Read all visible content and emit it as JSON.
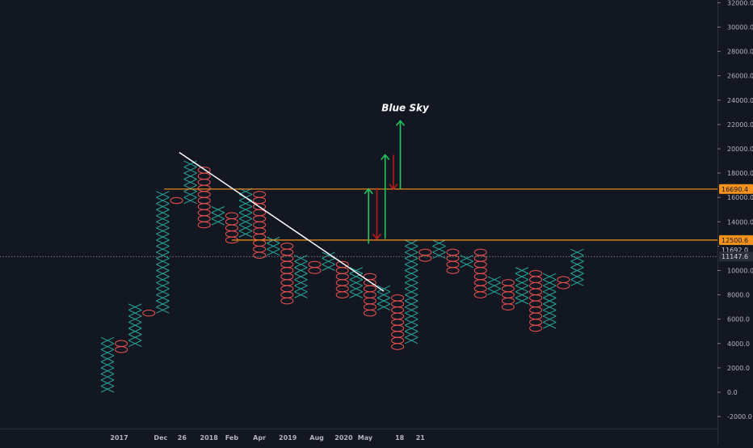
{
  "chart_data": {
    "type": "point_and_figure",
    "title": "",
    "xlabel": "",
    "ylabel": "",
    "ylim": [
      -3000,
      32000
    ],
    "grid": false,
    "y_ticks": [
      "-2000.0",
      "0.0",
      "2000.0",
      "4000.0",
      "6000.0",
      "8000.0",
      "10000.0",
      "12000.0",
      "14000.0",
      "16000.0",
      "18000.0",
      "20000.0",
      "22000.0",
      "24000.0",
      "26000.0",
      "28000.0",
      "30000.0",
      "32000.0"
    ],
    "y_tick_values": [
      -2000,
      0,
      2000,
      4000,
      6000,
      8000,
      10000,
      12000,
      14000,
      16000,
      18000,
      20000,
      22000,
      24000,
      26000,
      28000,
      30000,
      32000
    ],
    "x_ticks": [
      {
        "label": "2017",
        "col": 0.85
      },
      {
        "label": "Dec",
        "col": 3.85
      },
      {
        "label": "26",
        "col": 5.4
      },
      {
        "label": "2018",
        "col": 7.35
      },
      {
        "label": "Feb",
        "col": 9.0
      },
      {
        "label": "Apr",
        "col": 11.0
      },
      {
        "label": "2019",
        "col": 13.05
      },
      {
        "label": "Aug",
        "col": 15.15
      },
      {
        "label": "2020",
        "col": 17.1
      },
      {
        "label": "May",
        "col": 18.65
      },
      {
        "label": "18",
        "col": 21.15
      },
      {
        "label": "21",
        "col": 22.65
      }
    ],
    "box_size": 500,
    "columns": [
      {
        "type": "X",
        "low": 0,
        "high": 4500
      },
      {
        "type": "O",
        "low": 3250,
        "high": 4000
      },
      {
        "type": "X",
        "low": 3750,
        "high": 7000
      },
      {
        "type": "O",
        "low": 6250,
        "high": 6750
      },
      {
        "type": "X",
        "low": 6500,
        "high": 16500
      },
      {
        "type": "O",
        "low": 15500,
        "high": 16000
      },
      {
        "type": "X",
        "low": 15500,
        "high": 19000
      },
      {
        "type": "O",
        "low": 13500,
        "high": 18500
      },
      {
        "type": "X",
        "low": 13750,
        "high": 15250
      },
      {
        "type": "O",
        "low": 12250,
        "high": 14750
      },
      {
        "type": "X",
        "low": 12750,
        "high": 16750
      },
      {
        "type": "O",
        "low": 11000,
        "high": 16500
      },
      {
        "type": "X",
        "low": 11250,
        "high": 12750
      },
      {
        "type": "O",
        "low": 7250,
        "high": 12250
      },
      {
        "type": "X",
        "low": 7750,
        "high": 11250
      },
      {
        "type": "O",
        "low": 9750,
        "high": 10750
      },
      {
        "type": "X",
        "low": 10000,
        "high": 11250
      },
      {
        "type": "O",
        "low": 7750,
        "high": 10750
      },
      {
        "type": "X",
        "low": 7750,
        "high": 10000
      },
      {
        "type": "O",
        "low": 6250,
        "high": 9500
      },
      {
        "type": "X",
        "low": 6750,
        "high": 8500
      },
      {
        "type": "O",
        "low": 3500,
        "high": 7750
      },
      {
        "type": "X",
        "low": 4000,
        "high": 12500
      },
      {
        "type": "O",
        "low": 10750,
        "high": 11750
      },
      {
        "type": "X",
        "low": 11000,
        "high": 12250
      },
      {
        "type": "O",
        "low": 9750,
        "high": 11750
      },
      {
        "type": "X",
        "low": 10250,
        "high": 11250
      },
      {
        "type": "O",
        "low": 7750,
        "high": 11750
      },
      {
        "type": "X",
        "low": 8000,
        "high": 9500
      },
      {
        "type": "O",
        "low": 6750,
        "high": 9000
      },
      {
        "type": "X",
        "low": 7250,
        "high": 10250
      },
      {
        "type": "O",
        "low": 5000,
        "high": 9750
      },
      {
        "type": "X",
        "low": 5250,
        "high": 9750
      },
      {
        "type": "O",
        "low": 8500,
        "high": 9250
      },
      {
        "type": "X",
        "low": 8750,
        "high": 11500
      }
    ],
    "annotations": {
      "trendline": {
        "from": {
          "col": 5.2,
          "value": 19700
        },
        "to": {
          "col": 20.0,
          "value": 8300
        }
      },
      "resistance_1": {
        "value": 16690.4,
        "label": "16690.4"
      },
      "resistance_2": {
        "value": 12500.6,
        "label": "12500.6"
      },
      "last_price": {
        "value": 11147.6,
        "label": "11147.6"
      },
      "box_top": {
        "value": 11692.0,
        "label": "11692.0"
      },
      "arrows": [
        {
          "direction": "up",
          "color": "#22c55e",
          "col": 18.9,
          "from": 12200,
          "to": 16700
        },
        {
          "direction": "down",
          "color": "#b91c1c",
          "col": 19.5,
          "from": 16800,
          "to": 12600
        },
        {
          "direction": "up",
          "color": "#22c55e",
          "col": 20.1,
          "from": 12600,
          "to": 19500
        },
        {
          "direction": "down",
          "color": "#b91c1c",
          "col": 20.7,
          "from": 19500,
          "to": 16700
        },
        {
          "direction": "up",
          "color": "#22c55e",
          "col": 21.2,
          "from": 16700,
          "to": 22300
        }
      ],
      "blue_sky": {
        "text": "Blue Sky",
        "col": 21.2,
        "value": 23100
      }
    },
    "colors": {
      "background": "#131722",
      "x_box": "#26a69a",
      "o_box": "#ef5350",
      "trendline": "#ffffff",
      "resistance": "#f7931a",
      "axis_text": "#b2b5be"
    }
  }
}
